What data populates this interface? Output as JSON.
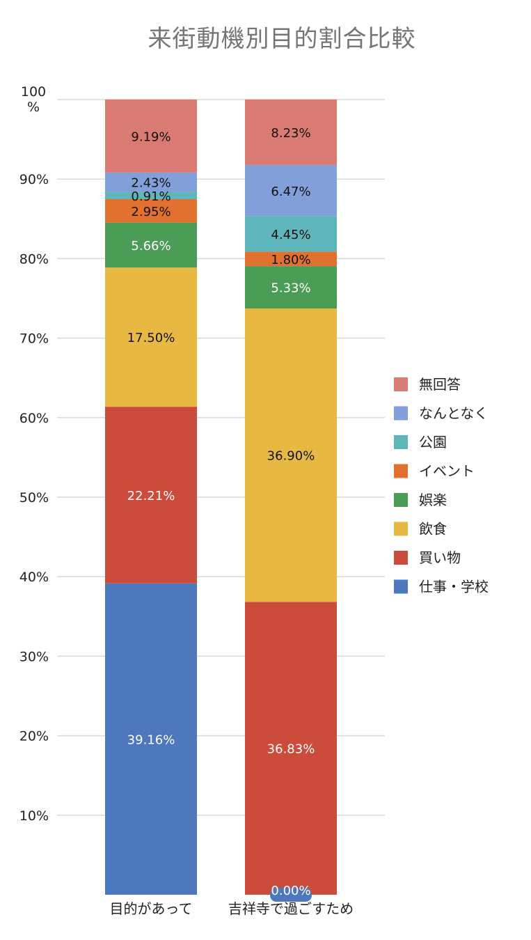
{
  "chart_data": {
    "type": "bar",
    "stacked": true,
    "title": "来街動機別目的割合比較",
    "xlabel": "",
    "ylabel": "",
    "ylim": [
      0,
      100
    ],
    "y_ticks": [
      {
        "value": 10,
        "label": "10%"
      },
      {
        "value": 20,
        "label": "20%"
      },
      {
        "value": 30,
        "label": "30%"
      },
      {
        "value": 40,
        "label": "40%"
      },
      {
        "value": 50,
        "label": "50%"
      },
      {
        "value": 60,
        "label": "60%"
      },
      {
        "value": 70,
        "label": "70%"
      },
      {
        "value": 80,
        "label": "80%"
      },
      {
        "value": 90,
        "label": "90%"
      },
      {
        "value": 100,
        "label": "100\n%"
      }
    ],
    "grid": true,
    "legend_position": "right",
    "categories": [
      "目的があって",
      "吉祥寺で過ごすため"
    ],
    "series": [
      {
        "name": "仕事・学校",
        "color": "#4e78be",
        "values": [
          39.16,
          0.0
        ],
        "labels": [
          "39.16%",
          "0.00%"
        ],
        "label_color": "#ffffff"
      },
      {
        "name": "買い物",
        "color": "#cc4c3c",
        "values": [
          22.21,
          36.83
        ],
        "labels": [
          "22.21%",
          "36.83%"
        ],
        "label_color": "#ffffff"
      },
      {
        "name": "飲食",
        "color": "#e8b942",
        "values": [
          17.5,
          36.9
        ],
        "labels": [
          "17.50%",
          "36.90%"
        ],
        "label_color": "#111111"
      },
      {
        "name": "娯楽",
        "color": "#4a9c57",
        "values": [
          5.66,
          5.33
        ],
        "labels": [
          "5.66%",
          "5.33%"
        ],
        "label_color": "#ffffff"
      },
      {
        "name": "イベント",
        "color": "#e2702f",
        "values": [
          2.95,
          1.8
        ],
        "labels": [
          "2.95%",
          "1.80%"
        ],
        "label_color": "#111111"
      },
      {
        "name": "公園",
        "color": "#5eb6ba",
        "values": [
          0.91,
          4.45
        ],
        "labels": [
          "0.91%",
          "4.45%"
        ],
        "label_color": "#111111"
      },
      {
        "name": "なんとなく",
        "color": "#819fd8",
        "values": [
          2.43,
          6.47
        ],
        "labels": [
          "2.43%",
          "6.47%"
        ],
        "label_color": "#111111"
      },
      {
        "name": "無回答",
        "color": "#d97b72",
        "values": [
          9.19,
          8.23
        ],
        "labels": [
          "9.19%",
          "8.23%"
        ],
        "label_color": "#111111"
      }
    ]
  }
}
